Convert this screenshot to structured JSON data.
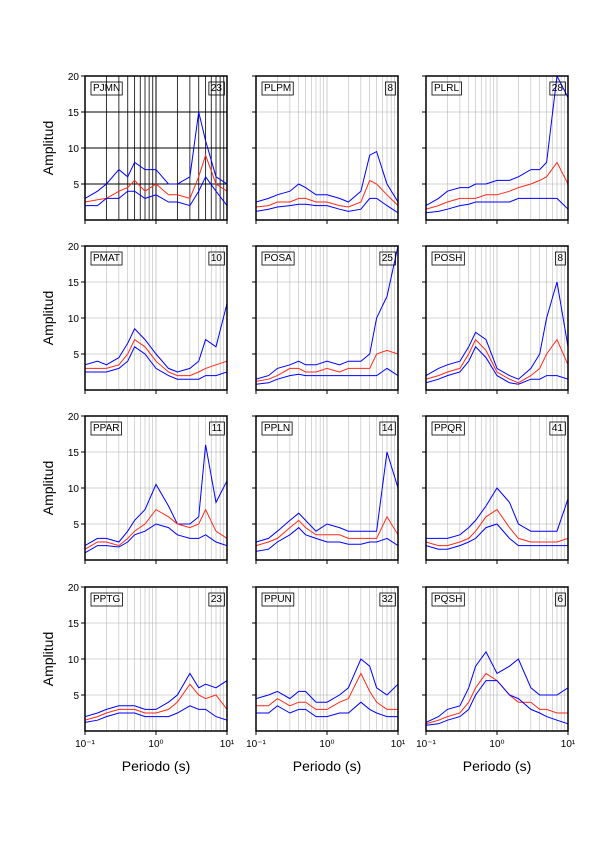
{
  "chart_data": [
    {
      "type": "line",
      "title": "PJMN",
      "annotation": 23,
      "x": [
        0.1,
        0.15,
        0.2,
        0.3,
        0.4,
        0.5,
        0.7,
        1,
        1.5,
        2,
        3,
        4,
        5,
        7,
        10
      ],
      "series": [
        {
          "color": "#0000ff",
          "values": [
            3,
            4,
            5,
            7,
            6,
            8,
            7,
            7,
            5,
            5,
            6,
            15,
            11,
            6,
            5
          ]
        },
        {
          "color": "#ff2a1a",
          "values": [
            2.5,
            2.8,
            3,
            4,
            4.5,
            5.5,
            4,
            5,
            3.5,
            3.5,
            3,
            6,
            9,
            5,
            4
          ]
        },
        {
          "color": "#0000ff",
          "values": [
            2,
            2,
            3,
            3,
            4,
            4,
            3,
            3.5,
            2.5,
            2.5,
            2,
            4,
            6,
            4,
            2
          ]
        }
      ],
      "xlim": [
        0.1,
        10
      ],
      "ylim": [
        0,
        20
      ],
      "xticks": [
        0.1,
        1,
        10
      ],
      "yticks": [
        5,
        10,
        15,
        20
      ],
      "x_scale": "log",
      "grid": true,
      "grid_color": "#000000",
      "y_label": "Amplitud"
    },
    {
      "type": "line",
      "title": "PLPM",
      "annotation": 8,
      "x": [
        0.1,
        0.15,
        0.2,
        0.3,
        0.4,
        0.5,
        0.7,
        1,
        1.5,
        2,
        3,
        4,
        5,
        7,
        10
      ],
      "series": [
        {
          "color": "#0000ff",
          "values": [
            2.5,
            3,
            3.5,
            4,
            5,
            4.5,
            3.5,
            3.5,
            3,
            2.5,
            4,
            9,
            9.5,
            5,
            2.5
          ]
        },
        {
          "color": "#ff2a1a",
          "values": [
            1.8,
            2,
            2.5,
            2.5,
            3,
            3,
            2.5,
            2.5,
            2,
            1.8,
            2.5,
            5.5,
            5,
            3.5,
            2
          ]
        },
        {
          "color": "#0000ff",
          "values": [
            1.2,
            1.5,
            1.8,
            2,
            2.2,
            2.2,
            2,
            2,
            1.5,
            1.2,
            1.5,
            3,
            3,
            2,
            1
          ]
        }
      ],
      "xlim": [
        0.1,
        10
      ],
      "ylim": [
        0,
        20
      ],
      "xticks": [
        0.1,
        1,
        10
      ],
      "yticks": [
        5,
        10,
        15,
        20
      ],
      "x_scale": "log",
      "grid": true,
      "grid_color": "#aaaaaa"
    },
    {
      "type": "line",
      "title": "PLRL",
      "annotation": 28,
      "x": [
        0.1,
        0.15,
        0.2,
        0.3,
        0.4,
        0.5,
        0.7,
        1,
        1.5,
        2,
        3,
        4,
        5,
        7,
        10
      ],
      "series": [
        {
          "color": "#0000ff",
          "values": [
            2,
            3,
            4,
            4.5,
            4.5,
            5,
            5,
            5.5,
            5.5,
            6,
            7,
            7,
            8,
            20,
            17
          ]
        },
        {
          "color": "#ff2a1a",
          "values": [
            1.5,
            2,
            2.5,
            3,
            3,
            3,
            3.5,
            3.5,
            4,
            4.5,
            5,
            5.5,
            6,
            8,
            5
          ]
        },
        {
          "color": "#0000ff",
          "values": [
            1,
            1.2,
            1.5,
            2,
            2.2,
            2.5,
            2.5,
            2.5,
            2.5,
            3,
            3,
            3,
            3,
            3,
            1.5
          ]
        }
      ],
      "xlim": [
        0.1,
        10
      ],
      "ylim": [
        0,
        20
      ],
      "xticks": [
        0.1,
        1,
        10
      ],
      "yticks": [
        5,
        10,
        15,
        20
      ],
      "x_scale": "log",
      "grid": true,
      "grid_color": "#aaaaaa"
    },
    {
      "type": "line",
      "title": "PMAT",
      "annotation": 10,
      "x": [
        0.1,
        0.15,
        0.2,
        0.3,
        0.4,
        0.5,
        0.7,
        1,
        1.5,
        2,
        3,
        4,
        5,
        7,
        10
      ],
      "series": [
        {
          "color": "#0000ff",
          "values": [
            3.5,
            4,
            3.5,
            4.5,
            6.5,
            8.5,
            7,
            5,
            3,
            2.5,
            3,
            4,
            7,
            6,
            12
          ]
        },
        {
          "color": "#ff2a1a",
          "values": [
            3,
            3,
            3,
            3.5,
            5,
            7,
            6,
            4,
            2.5,
            2,
            2,
            2.5,
            3,
            3.5,
            4
          ]
        },
        {
          "color": "#0000ff",
          "values": [
            2.5,
            2.5,
            2.5,
            3,
            4,
            6,
            5,
            3,
            2,
            1.5,
            1.5,
            1.5,
            2,
            2,
            2.5
          ]
        }
      ],
      "xlim": [
        0.1,
        10
      ],
      "ylim": [
        0,
        20
      ],
      "xticks": [
        0.1,
        1,
        10
      ],
      "yticks": [
        5,
        10,
        15,
        20
      ],
      "x_scale": "log",
      "grid": true,
      "grid_color": "#aaaaaa",
      "y_label": "Amplitud"
    },
    {
      "type": "line",
      "title": "POSA",
      "annotation": 25,
      "x": [
        0.1,
        0.15,
        0.2,
        0.3,
        0.4,
        0.5,
        0.7,
        1,
        1.5,
        2,
        3,
        4,
        5,
        7,
        10
      ],
      "series": [
        {
          "color": "#0000ff",
          "values": [
            1.5,
            2,
            3,
            3.5,
            4,
            3.5,
            3.5,
            4,
            3.5,
            4,
            4,
            5,
            10,
            13,
            20
          ]
        },
        {
          "color": "#ff2a1a",
          "values": [
            1.2,
            1.5,
            2,
            3,
            3,
            2.5,
            2.5,
            3,
            2.5,
            3,
            3,
            3,
            5,
            5.5,
            5
          ]
        },
        {
          "color": "#0000ff",
          "values": [
            0.8,
            1,
            1.5,
            2,
            2.2,
            2,
            2,
            2,
            2,
            2,
            2,
            2,
            2,
            3,
            2
          ]
        }
      ],
      "xlim": [
        0.1,
        10
      ],
      "ylim": [
        0,
        20
      ],
      "xticks": [
        0.1,
        1,
        10
      ],
      "yticks": [
        5,
        10,
        15,
        20
      ],
      "x_scale": "log",
      "grid": true,
      "grid_color": "#aaaaaa"
    },
    {
      "type": "line",
      "title": "POSH",
      "annotation": 8,
      "x": [
        0.1,
        0.15,
        0.2,
        0.3,
        0.4,
        0.5,
        0.7,
        1,
        1.5,
        2,
        3,
        4,
        5,
        7,
        10
      ],
      "series": [
        {
          "color": "#0000ff",
          "values": [
            2,
            3,
            3.5,
            4,
            6,
            8,
            7,
            3,
            2,
            1.5,
            3,
            5,
            10,
            15,
            6
          ]
        },
        {
          "color": "#ff2a1a",
          "values": [
            1.5,
            2,
            2.5,
            3,
            5,
            7,
            5.5,
            2.5,
            1.5,
            1,
            2,
            3,
            5,
            7,
            3.5
          ]
        },
        {
          "color": "#0000ff",
          "values": [
            1,
            1.5,
            2,
            2.5,
            4,
            6,
            4.5,
            2,
            1,
            0.8,
            1.5,
            1.5,
            2,
            2,
            1.5
          ]
        }
      ],
      "xlim": [
        0.1,
        10
      ],
      "ylim": [
        0,
        20
      ],
      "xticks": [
        0.1,
        1,
        10
      ],
      "yticks": [
        5,
        10,
        15,
        20
      ],
      "x_scale": "log",
      "grid": true,
      "grid_color": "#aaaaaa"
    },
    {
      "type": "line",
      "title": "PPAR",
      "annotation": 11,
      "x": [
        0.1,
        0.15,
        0.2,
        0.3,
        0.4,
        0.5,
        0.7,
        1,
        1.5,
        2,
        3,
        4,
        5,
        7,
        10
      ],
      "series": [
        {
          "color": "#0000ff",
          "values": [
            2,
            3,
            3,
            2.5,
            4,
            5.5,
            7,
            10.5,
            7.5,
            5,
            5,
            6,
            16,
            8,
            11
          ]
        },
        {
          "color": "#ff2a1a",
          "values": [
            1.5,
            2.5,
            2.5,
            2,
            3,
            4,
            5,
            7,
            6,
            5,
            4.5,
            5,
            7,
            4,
            3
          ]
        },
        {
          "color": "#0000ff",
          "values": [
            1,
            2,
            2,
            1.8,
            2.5,
            3.5,
            4,
            5,
            4.5,
            3.5,
            3,
            3,
            3.5,
            2.5,
            2
          ]
        }
      ],
      "xlim": [
        0.1,
        10
      ],
      "ylim": [
        0,
        20
      ],
      "xticks": [
        0.1,
        1,
        10
      ],
      "yticks": [
        5,
        10,
        15,
        20
      ],
      "x_scale": "log",
      "grid": true,
      "grid_color": "#aaaaaa",
      "y_label": "Amplitud"
    },
    {
      "type": "line",
      "title": "PPLN",
      "annotation": 14,
      "x": [
        0.1,
        0.15,
        0.2,
        0.3,
        0.4,
        0.5,
        0.7,
        1,
        1.5,
        2,
        3,
        4,
        5,
        7,
        10
      ],
      "series": [
        {
          "color": "#0000ff",
          "values": [
            2.5,
            3,
            4,
            5.5,
            6.5,
            5.5,
            4,
            5,
            4.5,
            4,
            4,
            4,
            4,
            15,
            10
          ]
        },
        {
          "color": "#ff2a1a",
          "values": [
            2,
            2.5,
            3,
            4.5,
            5.5,
            4.5,
            3.5,
            3.5,
            3.5,
            3,
            3,
            3,
            3,
            6,
            3.5
          ]
        },
        {
          "color": "#0000ff",
          "values": [
            1.2,
            1.5,
            2.5,
            3.5,
            4.5,
            3.5,
            3,
            2.5,
            2.5,
            2.2,
            2.2,
            2.5,
            2.5,
            3,
            2
          ]
        }
      ],
      "xlim": [
        0.1,
        10
      ],
      "ylim": [
        0,
        20
      ],
      "xticks": [
        0.1,
        1,
        10
      ],
      "yticks": [
        5,
        10,
        15,
        20
      ],
      "x_scale": "log",
      "grid": true,
      "grid_color": "#aaaaaa"
    },
    {
      "type": "line",
      "title": "PPQR",
      "annotation": 41,
      "x": [
        0.1,
        0.15,
        0.2,
        0.3,
        0.4,
        0.5,
        0.7,
        1,
        1.5,
        2,
        3,
        4,
        5,
        7,
        10
      ],
      "series": [
        {
          "color": "#0000ff",
          "values": [
            3,
            3,
            3,
            3.5,
            4.5,
            5.5,
            7.5,
            10,
            8,
            5,
            4,
            4,
            4,
            4,
            8.5
          ]
        },
        {
          "color": "#ff2a1a",
          "values": [
            2.5,
            2,
            2,
            2.5,
            3,
            4,
            6,
            7,
            4.5,
            3,
            2.5,
            2.5,
            2.5,
            2.5,
            3
          ]
        },
        {
          "color": "#0000ff",
          "values": [
            2,
            1.5,
            1.5,
            2,
            2.5,
            3,
            4.5,
            5,
            3,
            2,
            2,
            2,
            2,
            2,
            2
          ]
        }
      ],
      "xlim": [
        0.1,
        10
      ],
      "ylim": [
        0,
        20
      ],
      "xticks": [
        0.1,
        1,
        10
      ],
      "yticks": [
        5,
        10,
        15,
        20
      ],
      "x_scale": "log",
      "grid": true,
      "grid_color": "#aaaaaa"
    },
    {
      "type": "line",
      "title": "PPTG",
      "annotation": 23,
      "x": [
        0.1,
        0.15,
        0.2,
        0.3,
        0.4,
        0.5,
        0.7,
        1,
        1.5,
        2,
        3,
        4,
        5,
        7,
        10
      ],
      "series": [
        {
          "color": "#0000ff",
          "values": [
            2,
            2.5,
            3,
            3.5,
            3.5,
            3.5,
            3,
            3,
            4,
            5,
            8,
            6,
            6.5,
            6,
            7
          ]
        },
        {
          "color": "#ff2a1a",
          "values": [
            1.5,
            2,
            2.5,
            3,
            3,
            3,
            2.5,
            2.5,
            3,
            4,
            6.5,
            5,
            4.5,
            5,
            3
          ]
        },
        {
          "color": "#0000ff",
          "values": [
            1.2,
            1.5,
            2,
            2.5,
            2.5,
            2.5,
            2,
            2,
            2,
            2.5,
            3.5,
            3,
            3,
            2,
            1.5
          ]
        }
      ],
      "xlim": [
        0.1,
        10
      ],
      "ylim": [
        0,
        20
      ],
      "xticks": [
        {
          "value": 0.1,
          "label": "10⁻¹"
        },
        {
          "value": 1,
          "label": "10⁰"
        },
        {
          "value": 10,
          "label": "10¹"
        }
      ],
      "yticks": [
        5,
        10,
        15,
        20
      ],
      "x_scale": "log",
      "grid": true,
      "grid_color": "#aaaaaa",
      "y_label": "Amplitud",
      "x_label": "Periodo (s)"
    },
    {
      "type": "line",
      "title": "PPUN",
      "annotation": 32,
      "x": [
        0.1,
        0.15,
        0.2,
        0.3,
        0.4,
        0.5,
        0.7,
        1,
        1.5,
        2,
        3,
        4,
        5,
        7,
        10
      ],
      "series": [
        {
          "color": "#0000ff",
          "values": [
            4.5,
            5,
            5.5,
            4.5,
            5.5,
            5.5,
            4,
            4,
            5,
            6,
            10,
            9,
            6,
            5,
            6.5
          ]
        },
        {
          "color": "#ff2a1a",
          "values": [
            3.5,
            3.5,
            4.5,
            3.5,
            4,
            4,
            3,
            3,
            4,
            4.5,
            8,
            5.5,
            4,
            3,
            3
          ]
        },
        {
          "color": "#0000ff",
          "values": [
            2.5,
            2.5,
            3.5,
            2.5,
            3,
            3,
            2,
            2,
            2.5,
            2.5,
            4,
            3,
            2.5,
            2,
            2
          ]
        }
      ],
      "xlim": [
        0.1,
        10
      ],
      "ylim": [
        0,
        20
      ],
      "xticks": [
        {
          "value": 0.1,
          "label": "10⁻¹"
        },
        {
          "value": 1,
          "label": "10⁰"
        },
        {
          "value": 10,
          "label": "10¹"
        }
      ],
      "yticks": [
        5,
        10,
        15,
        20
      ],
      "x_scale": "log",
      "grid": true,
      "grid_color": "#aaaaaa",
      "x_label": "Periodo (s)"
    },
    {
      "type": "line",
      "title": "PQSH",
      "annotation": 6,
      "x": [
        0.1,
        0.15,
        0.2,
        0.3,
        0.4,
        0.5,
        0.7,
        1,
        1.5,
        2,
        3,
        4,
        5,
        7,
        10
      ],
      "series": [
        {
          "color": "#0000ff",
          "values": [
            1.2,
            2,
            3,
            3.5,
            6,
            9,
            11,
            8,
            9,
            10,
            6,
            5,
            5,
            5,
            6
          ]
        },
        {
          "color": "#ff2a1a",
          "values": [
            1,
            1.5,
            2,
            2.5,
            4,
            6,
            8,
            7,
            5,
            4,
            4,
            3,
            3,
            2.5,
            2.5
          ]
        },
        {
          "color": "#0000ff",
          "values": [
            0.8,
            1,
            1.5,
            2,
            3,
            5,
            7,
            7,
            5,
            4.5,
            3,
            2.5,
            2,
            1.5,
            1
          ]
        }
      ],
      "xlim": [
        0.1,
        10
      ],
      "ylim": [
        0,
        20
      ],
      "xticks": [
        {
          "value": 0.1,
          "label": "10⁻¹"
        },
        {
          "value": 1,
          "label": "10⁰"
        },
        {
          "value": 10,
          "label": "10¹"
        }
      ],
      "yticks": [
        5,
        10,
        15,
        20
      ],
      "x_scale": "log",
      "grid": true,
      "grid_color": "#aaaaaa",
      "x_label": "Periodo (s)"
    }
  ]
}
